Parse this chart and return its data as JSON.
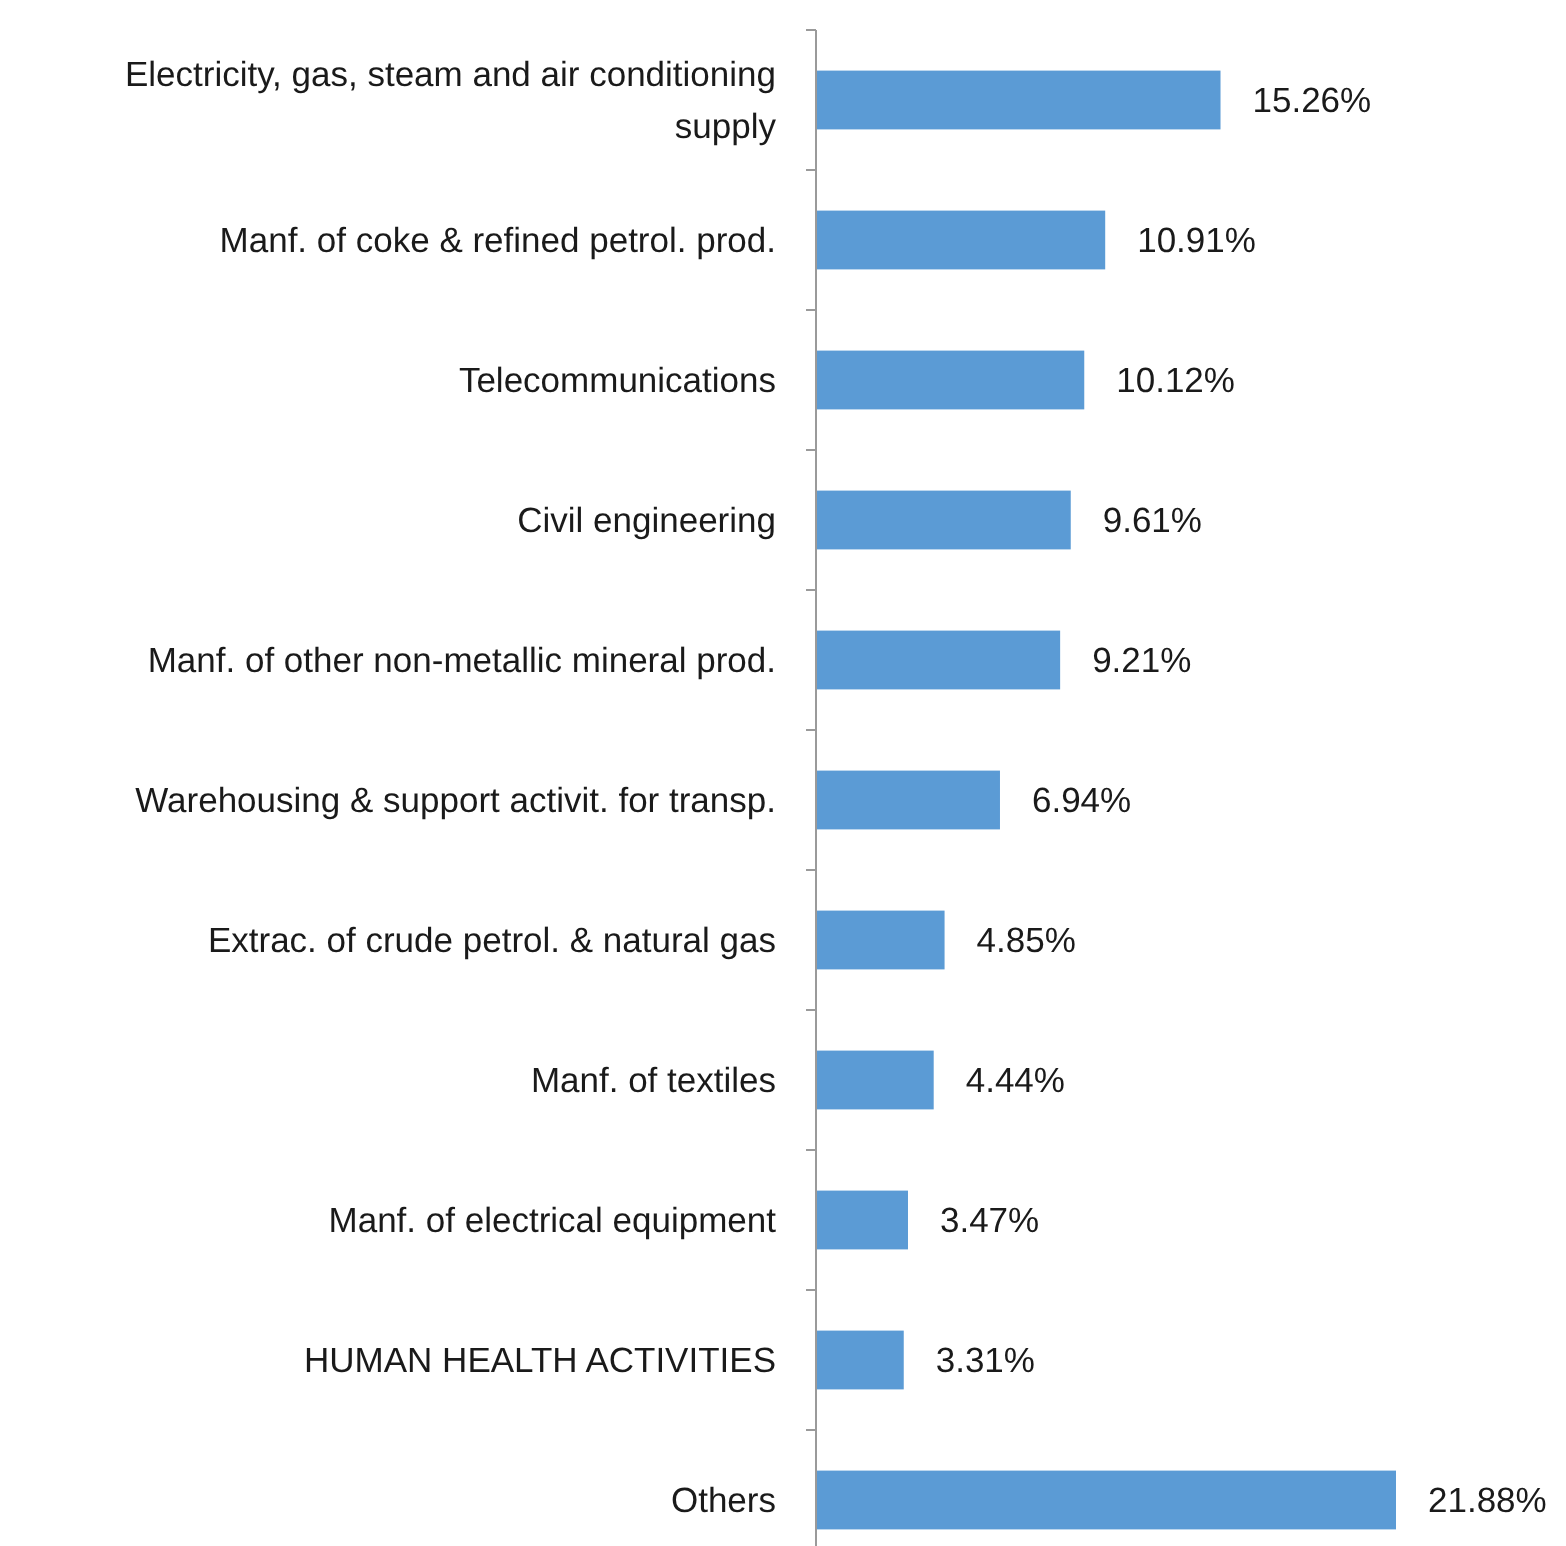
{
  "chart_data": {
    "type": "bar",
    "orientation": "horizontal",
    "categories": [
      "Electricity, gas, steam and air conditioning supply",
      "Manf. of coke & refined petrol. prod.",
      "Telecommunications",
      "Civil engineering",
      "Manf. of other non-metallic mineral prod.",
      "Warehousing & support activit. for transp.",
      "Extrac. of crude petrol. & natural gas",
      "Manf. of textiles",
      "Manf. of electrical equipment",
      "HUMAN HEALTH ACTIVITIES",
      "Others"
    ],
    "values": [
      15.26,
      10.91,
      10.12,
      9.61,
      9.21,
      6.94,
      4.85,
      4.44,
      3.47,
      3.31,
      21.88
    ],
    "value_labels": [
      "15.26%",
      "10.91%",
      "10.12%",
      "9.61%",
      "9.21%",
      "6.94%",
      "4.85%",
      "4.44%",
      "3.47%",
      "3.31%",
      "21.88%"
    ],
    "color": "#5b9bd5"
  }
}
